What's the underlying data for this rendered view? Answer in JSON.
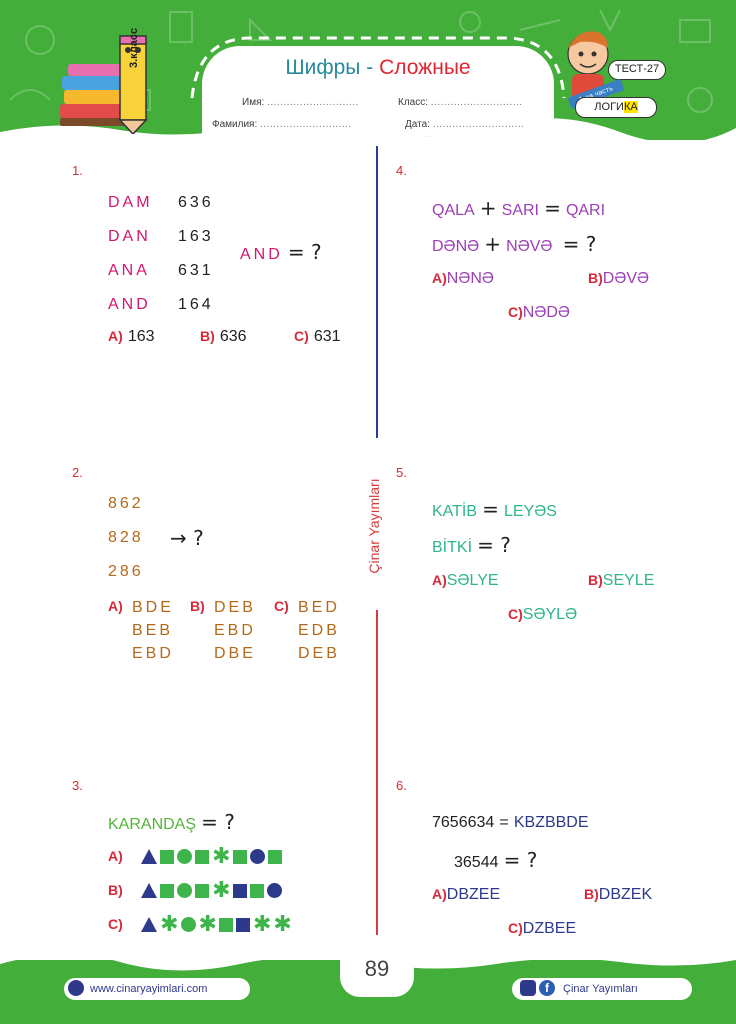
{
  "header": {
    "title_main": "Шифры",
    "title_dash": " - ",
    "title_hard": "Сложные",
    "grade_label": "3.класс",
    "test_label": "ТЕСТ-27",
    "part_label": "1-ая часть",
    "logic_label_a": "ЛОГИ",
    "logic_label_b": "КА",
    "fields": {
      "name": "Имя:",
      "class": "Класс:",
      "surname": "Фамилия:",
      "date": "Дата:",
      "dots": "............................"
    }
  },
  "brand_vertical": {
    "a": "Çinar",
    "b": " Yayımları"
  },
  "questions": {
    "q1": {
      "num": "1.",
      "rows": [
        {
          "word": "DAM",
          "code": "636"
        },
        {
          "word": "DAN",
          "code": "163"
        },
        {
          "word": "ANA",
          "code": "631"
        },
        {
          "word": "AND",
          "code": "164"
        }
      ],
      "ask_word": "AND",
      "ask_rest": "= ?",
      "options": [
        {
          "letter": "A)",
          "text": "163"
        },
        {
          "letter": "B)",
          "text": "636"
        },
        {
          "letter": "C)",
          "text": "631"
        }
      ]
    },
    "q2": {
      "num": "2.",
      "rows": [
        "862",
        "828",
        "286"
      ],
      "arrow": "→ ?",
      "options": [
        {
          "letter": "A)",
          "lines": [
            "BDE",
            "BEB",
            "EBD"
          ]
        },
        {
          "letter": "B)",
          "lines": [
            "DEB",
            "EBD",
            "DBE"
          ]
        },
        {
          "letter": "C)",
          "lines": [
            "BED",
            "EDB",
            "DEB"
          ]
        }
      ]
    },
    "q3": {
      "num": "3.",
      "word": "KARANDAŞ",
      "ask": "= ?",
      "options": [
        {
          "letter": "A)",
          "shapes": [
            "triangle",
            "square",
            "circle",
            "square",
            "star",
            "square",
            "circle-blue",
            "square"
          ]
        },
        {
          "letter": "B)",
          "shapes": [
            "triangle",
            "square",
            "circle",
            "square",
            "star",
            "square-blue",
            "square",
            "circle-blue"
          ]
        },
        {
          "letter": "C)",
          "shapes": [
            "triangle",
            "star",
            "circle",
            "star",
            "square",
            "square-blue",
            "star",
            "star"
          ]
        }
      ]
    },
    "q4": {
      "num": "4.",
      "eq1": {
        "a": "QALA",
        "op": "+",
        "b": "SARI",
        "eq": "=",
        "c": "QARI"
      },
      "eq2": {
        "a": "DƏNƏ",
        "op": "+",
        "b": "NƏVƏ",
        "ask": "= ?"
      },
      "options": [
        {
          "letter": "A)",
          "text": "NƏNƏ"
        },
        {
          "letter": "B)",
          "text": "DƏVƏ"
        },
        {
          "letter": "C)",
          "text": "NƏDƏ"
        }
      ]
    },
    "q5": {
      "num": "5.",
      "eq1": {
        "a": "KATİB",
        "eq": "=",
        "b": "LEYƏS"
      },
      "eq2": {
        "a": "BİTKİ",
        "ask": "= ?"
      },
      "options": [
        {
          "letter": "A)",
          "text": "SƏLYE"
        },
        {
          "letter": "B)",
          "text": "SEYLE"
        },
        {
          "letter": "C)",
          "text": "SƏYLƏ"
        }
      ]
    },
    "q6": {
      "num": "6.",
      "eq1": {
        "a": "7656634",
        "eq": "=",
        "b": "KBZBBDE"
      },
      "eq2": {
        "a": "36544",
        "ask": "= ?"
      },
      "options": [
        {
          "letter": "A)",
          "text": "DBZEE"
        },
        {
          "letter": "B)",
          "text": "DBZEK"
        },
        {
          "letter": "C)",
          "text": "DZBEE"
        }
      ]
    }
  },
  "footer": {
    "page_number": "89",
    "website": "www.cinaryayimlari.com",
    "social": "Çinar Yayımları",
    "fb_glyph": "f"
  },
  "colors": {
    "green_band": "#43ae3a",
    "title_teal": "#2a8a9a",
    "accent_red": "#e02633",
    "divider_blue": "#2f3a8f",
    "divider_red": "#d93a3a"
  }
}
